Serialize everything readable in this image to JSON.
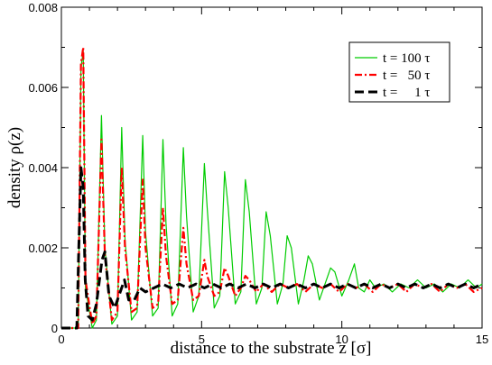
{
  "chart_data": {
    "type": "line",
    "xlabel": "distance to the substrate z [σ]",
    "ylabel": "density ρ(z)",
    "xlim": [
      0,
      15
    ],
    "ylim": [
      0,
      0.008
    ],
    "x_ticks": [
      "0",
      "5",
      "10",
      "15"
    ],
    "y_ticks": [
      "0",
      "0.002",
      "0.004",
      "0.006",
      "0.008"
    ],
    "grid": false,
    "legend_position": "top-right",
    "series": [
      {
        "name": "t = 100 τ",
        "color": "#00cc00",
        "style": "solid",
        "points": [
          [
            0,
            0
          ],
          [
            0.6,
            0
          ],
          [
            0.7,
            0.0065
          ],
          [
            0.78,
            0.0069
          ],
          [
            0.86,
            0.001
          ],
          [
            1.1,
            0.0
          ],
          [
            1.25,
            0.0002
          ],
          [
            1.43,
            0.0053
          ],
          [
            1.55,
            0.002
          ],
          [
            1.8,
            0.0001
          ],
          [
            2.0,
            0.0003
          ],
          [
            2.15,
            0.005
          ],
          [
            2.27,
            0.0022
          ],
          [
            2.5,
            0.0002
          ],
          [
            2.7,
            0.0004
          ],
          [
            2.9,
            0.0048
          ],
          [
            3.0,
            0.0024
          ],
          [
            3.25,
            0.0003
          ],
          [
            3.45,
            0.0005
          ],
          [
            3.62,
            0.0047
          ],
          [
            3.73,
            0.0026
          ],
          [
            3.95,
            0.0003
          ],
          [
            4.15,
            0.0006
          ],
          [
            4.35,
            0.0045
          ],
          [
            4.46,
            0.0028
          ],
          [
            4.7,
            0.0004
          ],
          [
            4.9,
            0.0008
          ],
          [
            5.1,
            0.0041
          ],
          [
            5.2,
            0.003
          ],
          [
            5.45,
            0.0005
          ],
          [
            5.65,
            0.0008
          ],
          [
            5.82,
            0.0039
          ],
          [
            5.95,
            0.003
          ],
          [
            6.2,
            0.0006
          ],
          [
            6.4,
            0.0009
          ],
          [
            6.56,
            0.0037
          ],
          [
            6.7,
            0.0029
          ],
          [
            6.95,
            0.0006
          ],
          [
            7.15,
            0.001
          ],
          [
            7.3,
            0.0029
          ],
          [
            7.45,
            0.0023
          ],
          [
            7.7,
            0.0006
          ],
          [
            7.9,
            0.0011
          ],
          [
            8.05,
            0.0023
          ],
          [
            8.2,
            0.002
          ],
          [
            8.45,
            0.0006
          ],
          [
            8.65,
            0.0012
          ],
          [
            8.8,
            0.0018
          ],
          [
            8.95,
            0.0016
          ],
          [
            9.2,
            0.0007
          ],
          [
            9.45,
            0.0012
          ],
          [
            9.6,
            0.0015
          ],
          [
            9.75,
            0.0014
          ],
          [
            10.0,
            0.0008
          ],
          [
            10.25,
            0.0012
          ],
          [
            10.45,
            0.0016
          ],
          [
            10.6,
            0.001
          ],
          [
            10.8,
            0.0009
          ],
          [
            11.0,
            0.0012
          ],
          [
            11.2,
            0.001
          ],
          [
            11.5,
            0.0011
          ],
          [
            11.8,
            0.0009
          ],
          [
            12.1,
            0.0011
          ],
          [
            12.4,
            0.001
          ],
          [
            12.7,
            0.0012
          ],
          [
            13.0,
            0.001
          ],
          [
            13.3,
            0.0011
          ],
          [
            13.6,
            0.0009
          ],
          [
            13.9,
            0.0011
          ],
          [
            14.2,
            0.001
          ],
          [
            14.5,
            0.0012
          ],
          [
            14.8,
            0.001
          ],
          [
            15.0,
            0.0011
          ]
        ]
      },
      {
        "name": "t =   50 τ",
        "color": "#ff0000",
        "style": "dashdot",
        "points": [
          [
            0,
            0
          ],
          [
            0.6,
            0
          ],
          [
            0.7,
            0.0066
          ],
          [
            0.78,
            0.007
          ],
          [
            0.86,
            0.0012
          ],
          [
            1.1,
            0.0001
          ],
          [
            1.25,
            0.0003
          ],
          [
            1.43,
            0.0047
          ],
          [
            1.55,
            0.0018
          ],
          [
            1.8,
            0.0002
          ],
          [
            2.0,
            0.0004
          ],
          [
            2.15,
            0.004
          ],
          [
            2.27,
            0.002
          ],
          [
            2.5,
            0.0004
          ],
          [
            2.7,
            0.0005
          ],
          [
            2.9,
            0.0037
          ],
          [
            3.0,
            0.002
          ],
          [
            3.25,
            0.0005
          ],
          [
            3.45,
            0.0006
          ],
          [
            3.62,
            0.003
          ],
          [
            3.73,
            0.0018
          ],
          [
            3.95,
            0.0006
          ],
          [
            4.15,
            0.0007
          ],
          [
            4.35,
            0.0025
          ],
          [
            4.46,
            0.0016
          ],
          [
            4.7,
            0.0007
          ],
          [
            4.9,
            0.0008
          ],
          [
            5.1,
            0.0017
          ],
          [
            5.2,
            0.0013
          ],
          [
            5.45,
            0.0008
          ],
          [
            5.65,
            0.0009
          ],
          [
            5.82,
            0.0015
          ],
          [
            5.95,
            0.0013
          ],
          [
            6.2,
            0.0008
          ],
          [
            6.4,
            0.001
          ],
          [
            6.56,
            0.0013
          ],
          [
            6.7,
            0.0012
          ],
          [
            6.95,
            0.0009
          ],
          [
            7.2,
            0.0011
          ],
          [
            7.5,
            0.0009
          ],
          [
            7.8,
            0.0011
          ],
          [
            8.1,
            0.001
          ],
          [
            8.4,
            0.0011
          ],
          [
            8.7,
            0.0009
          ],
          [
            9.0,
            0.0011
          ],
          [
            9.3,
            0.001
          ],
          [
            9.6,
            0.0011
          ],
          [
            9.9,
            0.0009
          ],
          [
            10.2,
            0.0011
          ],
          [
            10.5,
            0.001
          ],
          [
            10.8,
            0.0011
          ],
          [
            11.1,
            0.0009
          ],
          [
            11.4,
            0.0011
          ],
          [
            11.7,
            0.001
          ],
          [
            12.0,
            0.0011
          ],
          [
            12.3,
            0.0009
          ],
          [
            12.6,
            0.0011
          ],
          [
            12.9,
            0.001
          ],
          [
            13.2,
            0.0011
          ],
          [
            13.5,
            0.0009
          ],
          [
            13.8,
            0.0011
          ],
          [
            14.1,
            0.001
          ],
          [
            14.4,
            0.0011
          ],
          [
            14.7,
            0.0009
          ],
          [
            15.0,
            0.001
          ]
        ]
      },
      {
        "name": "t =     1 τ",
        "color": "#000000",
        "style": "dashed",
        "points": [
          [
            0,
            0
          ],
          [
            0.55,
            0
          ],
          [
            0.62,
            0.002
          ],
          [
            0.7,
            0.004
          ],
          [
            0.78,
            0.0035
          ],
          [
            0.85,
            0.0012
          ],
          [
            0.95,
            0.0003
          ],
          [
            1.1,
            0.0002
          ],
          [
            1.25,
            0.0006
          ],
          [
            1.45,
            0.0017
          ],
          [
            1.55,
            0.0019
          ],
          [
            1.7,
            0.0008
          ],
          [
            1.9,
            0.0005
          ],
          [
            2.1,
            0.0009
          ],
          [
            2.25,
            0.0012
          ],
          [
            2.4,
            0.0007
          ],
          [
            2.6,
            0.0007
          ],
          [
            2.8,
            0.001
          ],
          [
            3.0,
            0.0009
          ],
          [
            3.3,
            0.001
          ],
          [
            3.6,
            0.0011
          ],
          [
            3.9,
            0.001
          ],
          [
            4.2,
            0.0011
          ],
          [
            4.5,
            0.001
          ],
          [
            4.8,
            0.0011
          ],
          [
            5.1,
            0.001
          ],
          [
            5.4,
            0.0011
          ],
          [
            5.7,
            0.001
          ],
          [
            6.0,
            0.0011
          ],
          [
            6.3,
            0.001
          ],
          [
            6.6,
            0.0011
          ],
          [
            6.9,
            0.001
          ],
          [
            7.2,
            0.0011
          ],
          [
            7.5,
            0.001
          ],
          [
            7.8,
            0.0011
          ],
          [
            8.1,
            0.001
          ],
          [
            8.4,
            0.0011
          ],
          [
            8.7,
            0.001
          ],
          [
            9.0,
            0.0011
          ],
          [
            9.3,
            0.001
          ],
          [
            9.6,
            0.0011
          ],
          [
            9.9,
            0.001
          ],
          [
            10.2,
            0.0011
          ],
          [
            10.5,
            0.001
          ],
          [
            10.8,
            0.0011
          ],
          [
            11.1,
            0.001
          ],
          [
            11.4,
            0.0011
          ],
          [
            11.7,
            0.001
          ],
          [
            12.0,
            0.0011
          ],
          [
            12.3,
            0.001
          ],
          [
            12.6,
            0.0011
          ],
          [
            12.9,
            0.001
          ],
          [
            13.2,
            0.0011
          ],
          [
            13.5,
            0.001
          ],
          [
            13.8,
            0.0011
          ],
          [
            14.1,
            0.001
          ],
          [
            14.4,
            0.0011
          ],
          [
            14.7,
            0.001
          ],
          [
            15.0,
            0.0011
          ]
        ]
      }
    ]
  }
}
